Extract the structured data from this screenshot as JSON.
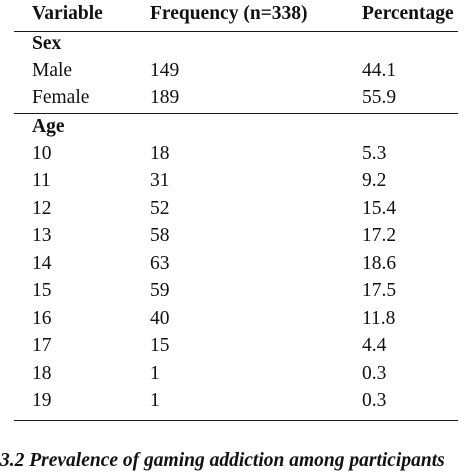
{
  "table": {
    "headers": [
      "Variable",
      "Frequency (n=338)",
      "Percentage"
    ],
    "sections": [
      {
        "title": "Sex",
        "rows": [
          [
            "Male",
            "149",
            "44.1"
          ],
          [
            "Female",
            "189",
            "55.9"
          ]
        ]
      },
      {
        "title": "Age",
        "rows": [
          [
            "10",
            "18",
            "5.3"
          ],
          [
            "11",
            "31",
            "9.2"
          ],
          [
            "12",
            "52",
            "15.4"
          ],
          [
            "13",
            "58",
            "17.2"
          ],
          [
            "14",
            "63",
            "18.6"
          ],
          [
            "15",
            "59",
            "17.5"
          ],
          [
            "16",
            "40",
            "11.8"
          ],
          [
            "17",
            "15",
            "4.4"
          ],
          [
            "18",
            "1",
            "0.3"
          ],
          [
            "19",
            "1",
            "0.3"
          ]
        ]
      }
    ]
  },
  "caption": "3.2 Prevalence of gaming addiction among participants"
}
